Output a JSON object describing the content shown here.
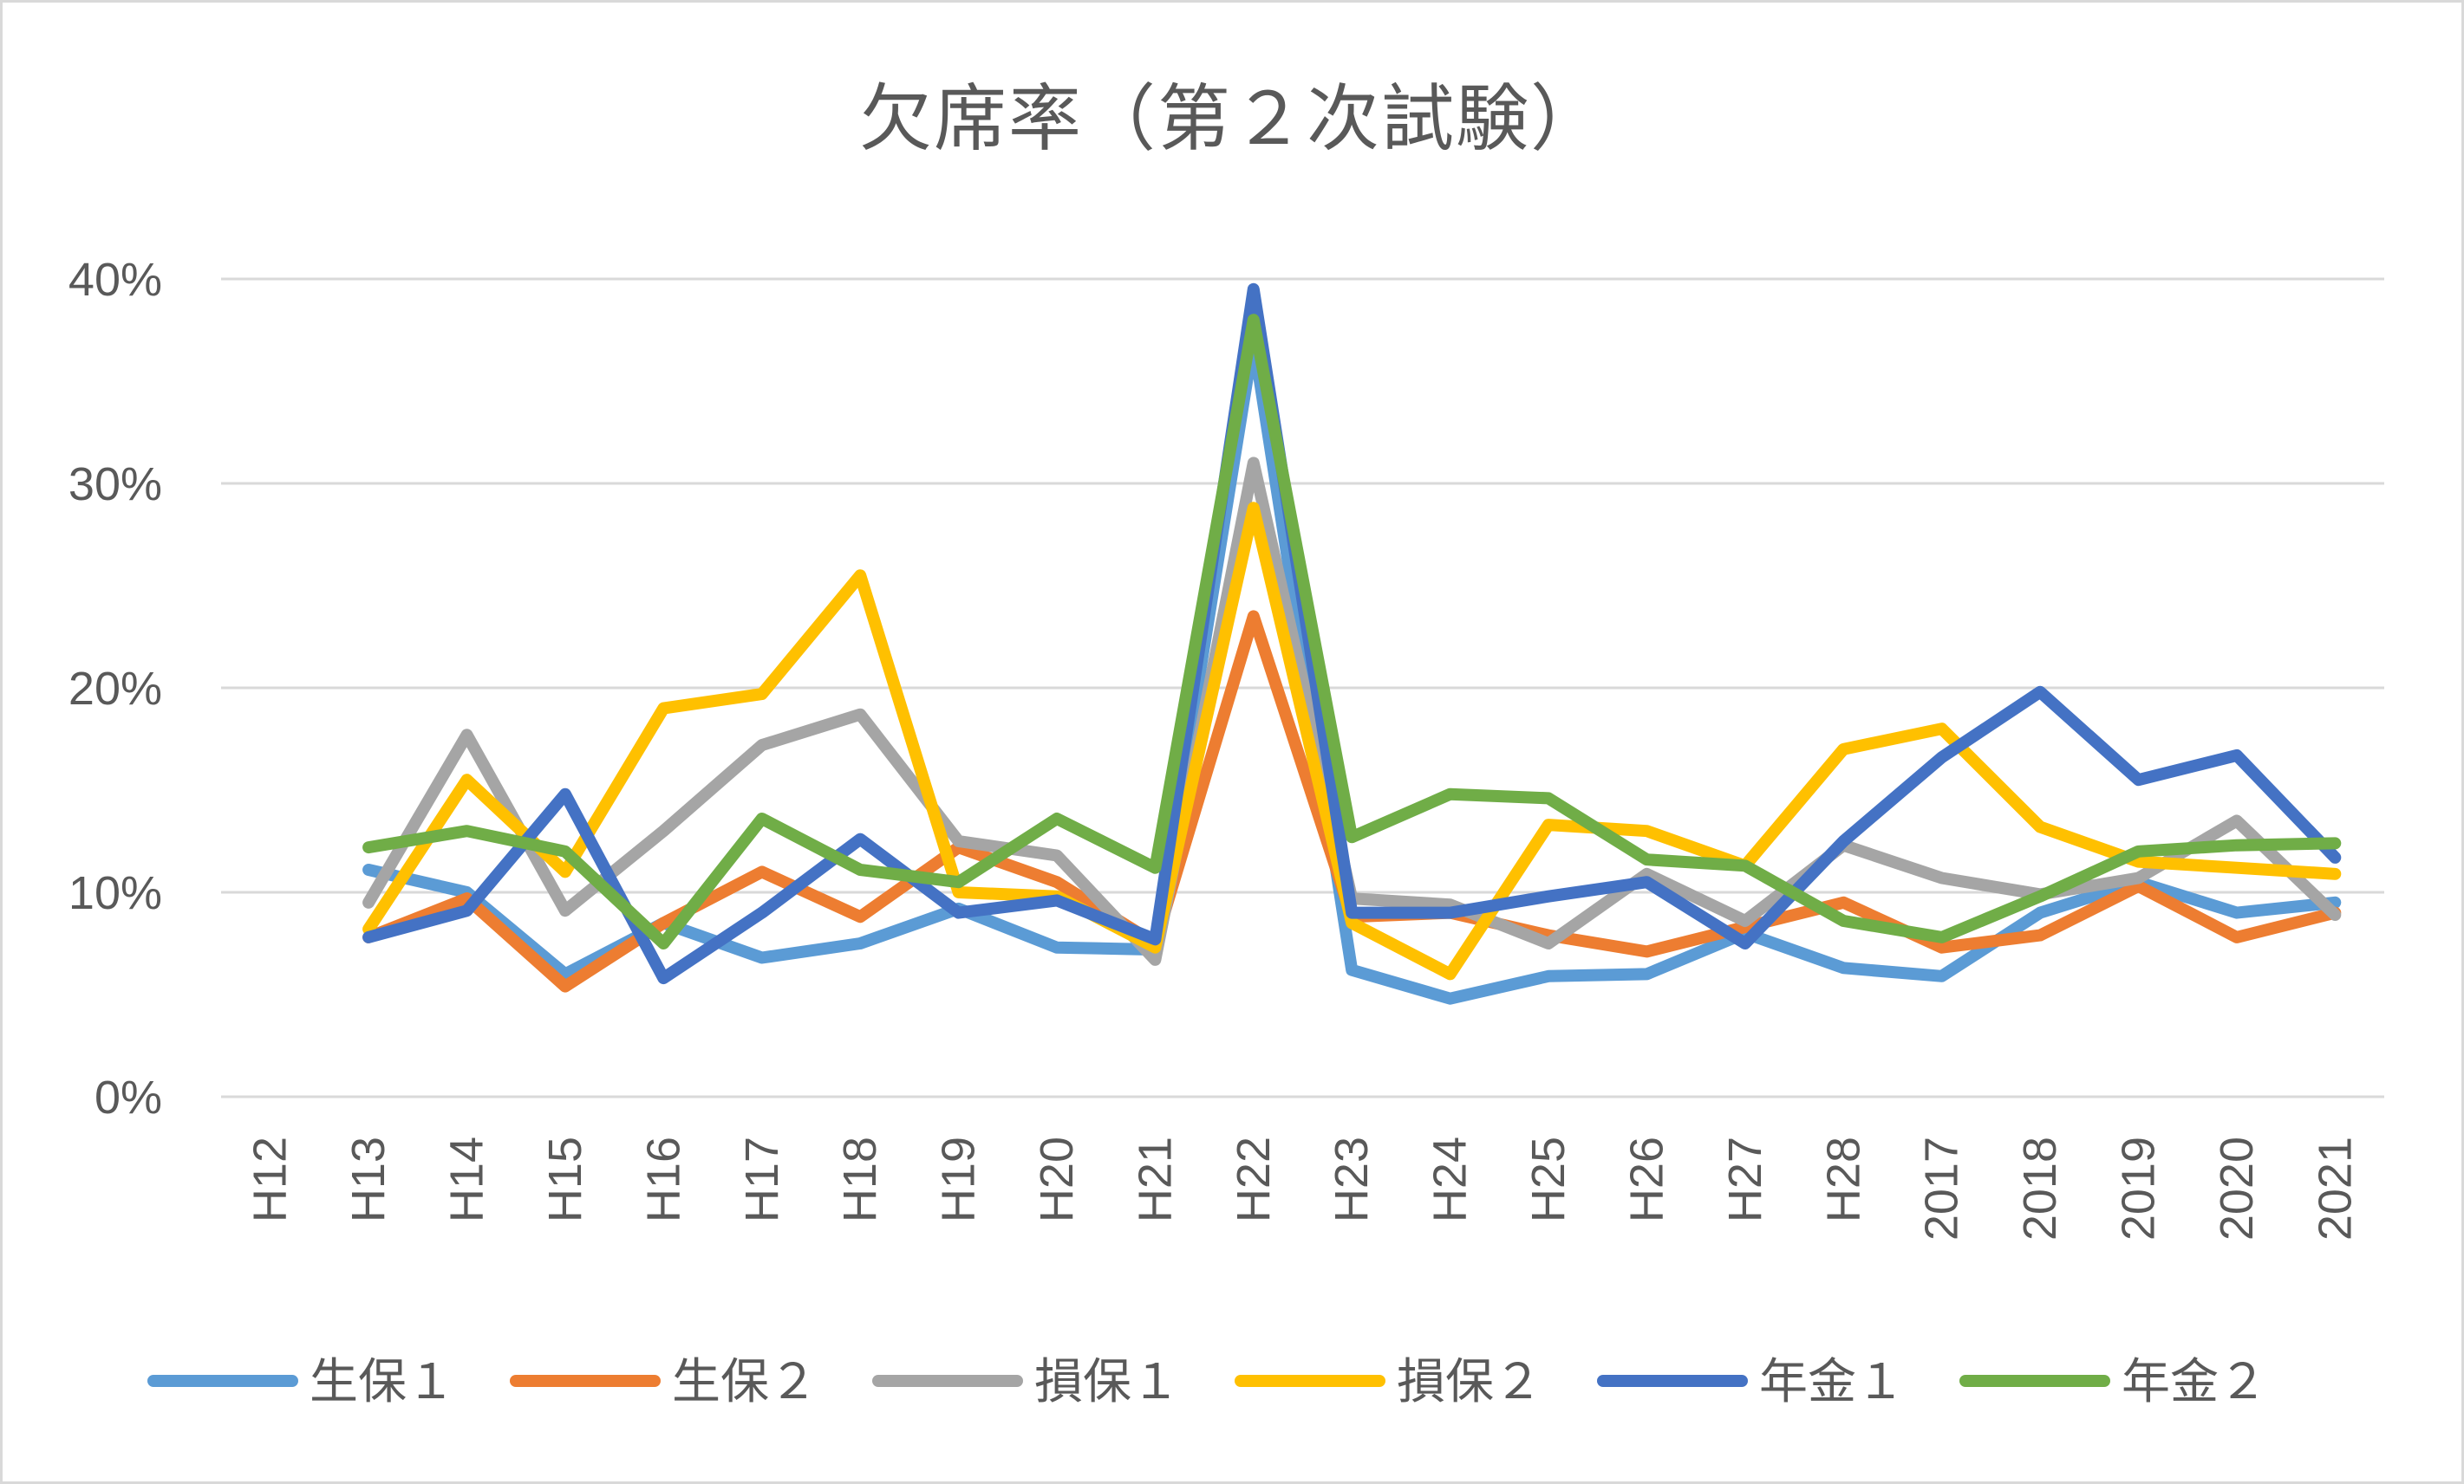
{
  "chart_data": {
    "type": "line",
    "title": "欠席率（第２次試験）",
    "xlabel": "",
    "ylabel": "",
    "ylim": [
      0,
      0.4
    ],
    "yticks": [
      "0%",
      "10%",
      "20%",
      "30%",
      "40%"
    ],
    "grid": true,
    "legend_position": "bottom",
    "categories": [
      "H12",
      "H13",
      "H14",
      "H15",
      "H16",
      "H17",
      "H18",
      "H19",
      "H20",
      "H21",
      "H22",
      "H23",
      "H24",
      "H25",
      "H26",
      "H27",
      "H28",
      "2017",
      "2018",
      "2019",
      "2020",
      "2021"
    ],
    "series": [
      {
        "name": "生保１",
        "color": "#5b9bd5",
        "values": [
          null,
          0.111,
          0.1,
          0.06,
          0.085,
          0.068,
          0.075,
          0.092,
          0.073,
          0.072,
          0.37,
          0.062,
          0.048,
          0.059,
          0.06,
          0.08,
          0.063,
          0.059,
          0.09,
          0.105,
          0.09,
          0.095
        ]
      },
      {
        "name": "生保２",
        "color": "#ed7d31",
        "values": [
          null,
          0.078,
          0.097,
          0.054,
          0.085,
          0.11,
          0.088,
          0.122,
          0.105,
          0.075,
          0.235,
          0.088,
          0.09,
          0.079,
          0.071,
          0.083,
          0.095,
          0.073,
          0.079,
          0.103,
          0.078,
          0.09
        ]
      },
      {
        "name": "損保１",
        "color": "#a5a5a5",
        "values": [
          null,
          0.095,
          0.177,
          0.091,
          0.13,
          0.172,
          0.187,
          0.125,
          0.118,
          0.067,
          0.31,
          0.097,
          0.094,
          0.075,
          0.109,
          0.086,
          0.123,
          0.107,
          0.099,
          0.107,
          0.135,
          0.089
        ]
      },
      {
        "name": "損保２",
        "color": "#ffc000",
        "values": [
          null,
          0.082,
          0.155,
          0.11,
          0.19,
          0.197,
          0.255,
          0.1,
          0.098,
          0.073,
          0.288,
          0.085,
          0.06,
          0.133,
          0.13,
          0.113,
          0.17,
          0.18,
          0.132,
          0.115,
          0.112,
          0.109
        ]
      },
      {
        "name": "年金１",
        "color": "#4472c4",
        "values": [
          null,
          0.078,
          0.091,
          0.148,
          0.058,
          0.09,
          0.126,
          0.09,
          0.096,
          0.077,
          0.395,
          0.09,
          0.09,
          0.098,
          0.105,
          0.075,
          0.125,
          0.166,
          0.198,
          0.155,
          0.167,
          0.117
        ]
      },
      {
        "name": "年金２",
        "color": "#70ad47",
        "values": [
          null,
          0.122,
          0.13,
          0.12,
          0.075,
          0.136,
          0.111,
          0.105,
          0.136,
          0.112,
          0.38,
          0.127,
          0.148,
          0.146,
          0.116,
          0.113,
          0.086,
          0.078,
          0.098,
          0.12,
          0.123,
          0.124
        ]
      }
    ]
  }
}
